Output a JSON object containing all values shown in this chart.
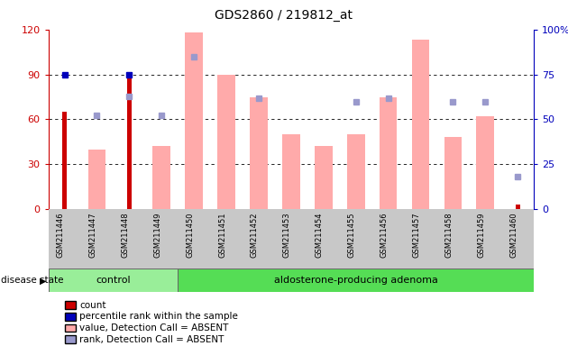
{
  "title": "GDS2860 / 219812_at",
  "samples": [
    "GSM211446",
    "GSM211447",
    "GSM211448",
    "GSM211449",
    "GSM211450",
    "GSM211451",
    "GSM211452",
    "GSM211453",
    "GSM211454",
    "GSM211455",
    "GSM211456",
    "GSM211457",
    "GSM211458",
    "GSM211459",
    "GSM211460"
  ],
  "count_values": [
    65,
    0,
    88,
    0,
    0,
    0,
    0,
    0,
    0,
    0,
    0,
    0,
    0,
    0,
    3
  ],
  "percentile_rank_values": [
    75,
    0,
    75,
    0,
    0,
    0,
    0,
    0,
    0,
    0,
    0,
    0,
    0,
    0,
    0
  ],
  "pink_bar_values": [
    0,
    40,
    0,
    42,
    118,
    90,
    75,
    50,
    42,
    50,
    75,
    113,
    48,
    62,
    0
  ],
  "blue_dot_values": [
    0,
    52,
    63,
    52,
    85,
    0,
    62,
    0,
    0,
    60,
    62,
    0,
    60,
    60,
    18
  ],
  "control_count": 4,
  "total_count": 15,
  "left_ylim": [
    0,
    120
  ],
  "right_ylim": [
    0,
    100
  ],
  "left_yticks": [
    0,
    30,
    60,
    90,
    120
  ],
  "right_yticks": [
    0,
    25,
    50,
    75,
    100
  ],
  "right_yticklabels": [
    "0",
    "25",
    "50",
    "75",
    "100%"
  ],
  "bar_color_dark_red": "#cc0000",
  "bar_color_pink": "#ffaaaa",
  "dot_color_dark_blue": "#0000bb",
  "dot_color_light_blue": "#9999cc",
  "bg_color_gray": "#c8c8c8",
  "control_green": "#99ee99",
  "adenoma_green": "#55dd55",
  "left_axis_color": "#cc0000",
  "right_axis_color": "#0000bb"
}
